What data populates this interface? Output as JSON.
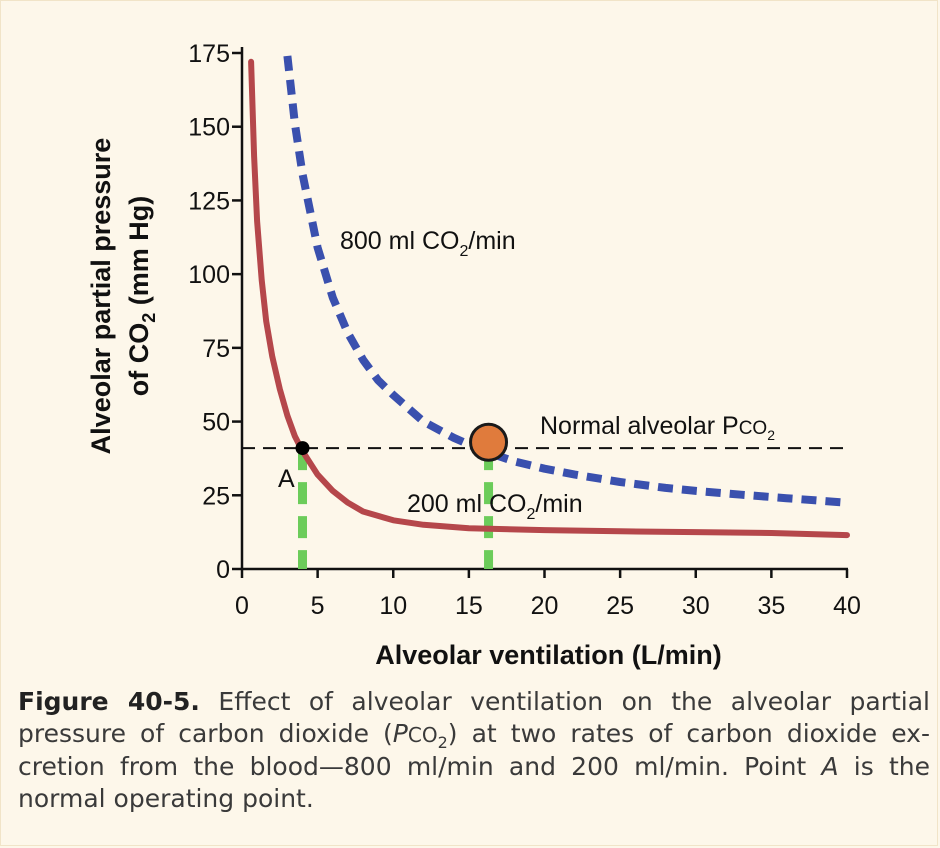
{
  "chart_data": {
    "type": "line",
    "xlabel": "Alveolar ventilation (L/min)",
    "ylabel": {
      "line1": "Alveolar partial pressure",
      "line2_pre": "of CO",
      "line2_sub": "2",
      "line2_post": " (mm Hg)"
    },
    "xlim": [
      0,
      40
    ],
    "ylim": [
      0,
      175
    ],
    "xticks": [
      0,
      5,
      10,
      15,
      20,
      25,
      30,
      35,
      40
    ],
    "yticks": [
      0,
      25,
      50,
      75,
      100,
      125,
      150,
      175
    ],
    "grid": false,
    "series": [
      {
        "label_pre": "800 ml CO",
        "label_sub": "2",
        "label_post": "/min",
        "color": "#3a50ae",
        "style": "dashed",
        "x": [
          3.0,
          3.5,
          4,
          5,
          6,
          7,
          8,
          9,
          10,
          12,
          14,
          16,
          18,
          20,
          22,
          25,
          28,
          30,
          33,
          36,
          40
        ],
        "y": [
          174,
          151,
          134,
          109,
          92,
          80,
          71,
          64,
          59,
          50,
          44.5,
          40,
          36.5,
          34,
          32,
          29.5,
          27.5,
          26.5,
          25.2,
          24,
          22.5
        ]
      },
      {
        "label_pre": "200 ml CO",
        "label_sub": "2",
        "label_post": "/min",
        "color": "#b5474b",
        "style": "solid",
        "x": [
          0.6,
          0.8,
          1,
          1.3,
          1.6,
          2,
          2.5,
          3,
          3.5,
          4,
          5,
          6,
          7,
          8,
          10,
          12,
          15,
          20,
          25,
          30,
          35,
          40
        ],
        "y": [
          172,
          140,
          118,
          98,
          84,
          72,
          61,
          52,
          45,
          40,
          32,
          26.5,
          22.5,
          19.5,
          16.5,
          15,
          13.8,
          13.2,
          12.8,
          12.5,
          12.2,
          11.5
        ]
      }
    ],
    "reference_line": {
      "y": 41,
      "label_pre": "Normal alveolar P",
      "label_small": "CO",
      "label_sub": "2",
      "color": "#111111",
      "style": "dashed"
    },
    "points": [
      {
        "name": "A",
        "x": 4,
        "y": 41,
        "color": "#000000"
      },
      {
        "name": "",
        "x": 16.3,
        "y": 43,
        "color": "#e07b3c"
      }
    ],
    "drop_lines": [
      {
        "x": 4,
        "y_top": 41,
        "color": "#6ccc5a"
      },
      {
        "x": 16.3,
        "y_top": 41,
        "color": "#6ccc5a"
      }
    ]
  },
  "caption": {
    "label": "Figure 40-5.",
    "text_1": " Effect of alveolar ventilation on the alveolar partial pressure of carbon dioxide (",
    "italic_p": "P",
    "co": "CO",
    "sub_2": "2",
    "text_2": ") at two rates of carbon dioxide ex­cretion from the blood—800 ml/min and 200 ml/min. Point ",
    "italic_a": "A",
    "text_3": " is the normal operating point."
  }
}
